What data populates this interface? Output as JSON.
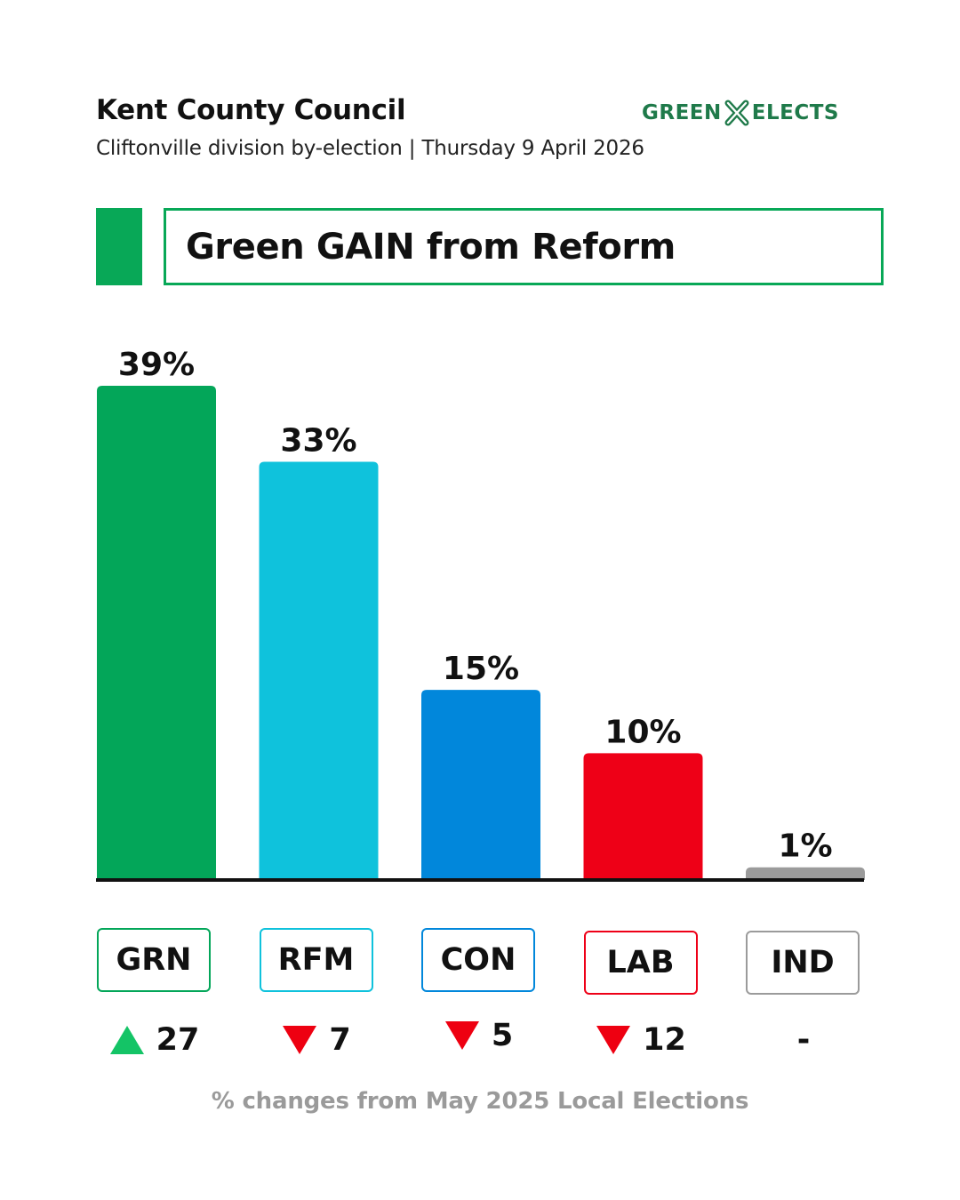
{
  "header": {
    "title": "Kent County Council",
    "subtitle": "Cliftonville division by-election | Thursday 9 April 2026",
    "logo_left": "GREEN",
    "logo_right": "ELECTS",
    "logo_color": "#1f7a4a"
  },
  "headline": {
    "text": "Green GAIN from Reform",
    "accent_color": "#08a857"
  },
  "chart_data": {
    "type": "bar",
    "title": "",
    "xlabel": "",
    "ylabel": "",
    "categories": [
      "GRN",
      "RFM",
      "CON",
      "LAB",
      "IND"
    ],
    "values": [
      39,
      33,
      15,
      10,
      1
    ],
    "value_labels": [
      "39%",
      "33%",
      "15%",
      "10%",
      "1%"
    ],
    "ylim": [
      0,
      40
    ],
    "grid": false,
    "colors": [
      "#03a659",
      "#0fc2dc",
      "#0187db",
      "#ee0017",
      "#9b9b9b"
    ],
    "changes": [
      {
        "direction": "up",
        "text": "27"
      },
      {
        "direction": "down",
        "text": "7"
      },
      {
        "direction": "down",
        "text": "5"
      },
      {
        "direction": "down",
        "text": "12"
      },
      {
        "direction": "none",
        "text": "-"
      }
    ]
  },
  "footnote": "% changes from May 2025 Local Elections"
}
